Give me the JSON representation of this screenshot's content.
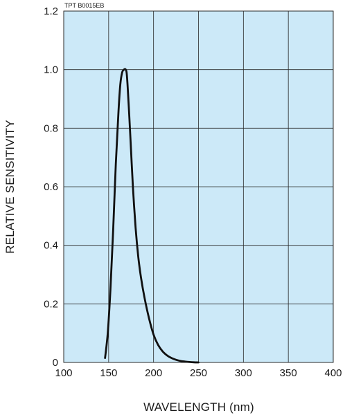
{
  "chart_data": {
    "type": "line",
    "figure_code": "TPT B0015EB",
    "xlabel": "WAVELENGTH (nm)",
    "ylabel": "RELATIVE SENSITIVITY",
    "xlim": [
      100,
      400
    ],
    "ylim": [
      0,
      1.2
    ],
    "x_ticks": [
      "100",
      "150",
      "200",
      "250",
      "300",
      "350",
      "400"
    ],
    "y_ticks": [
      "0",
      "0.2",
      "0.4",
      "0.6",
      "0.8",
      "1.0",
      "1.2"
    ],
    "grid": true,
    "legend": "none",
    "colors": {
      "plot_background": "#cce9f8",
      "grid": "#2a2a2a",
      "curve": "#111111"
    },
    "series": [
      {
        "x": [
          146,
          149,
          152,
          155,
          158,
          161,
          163,
          165,
          167,
          168,
          169,
          170,
          171,
          173,
          175,
          177,
          180,
          183,
          186,
          190,
          195,
          200,
          205,
          210,
          215,
          220,
          225,
          230,
          235,
          240,
          245,
          250
        ],
        "y": [
          0.015,
          0.1,
          0.25,
          0.45,
          0.68,
          0.86,
          0.95,
          0.99,
          1.0,
          1.002,
          1.0,
          0.99,
          0.95,
          0.84,
          0.72,
          0.6,
          0.46,
          0.36,
          0.29,
          0.22,
          0.15,
          0.095,
          0.06,
          0.038,
          0.024,
          0.015,
          0.009,
          0.005,
          0.003,
          0.0015,
          0.0005,
          0.0
        ]
      }
    ]
  }
}
